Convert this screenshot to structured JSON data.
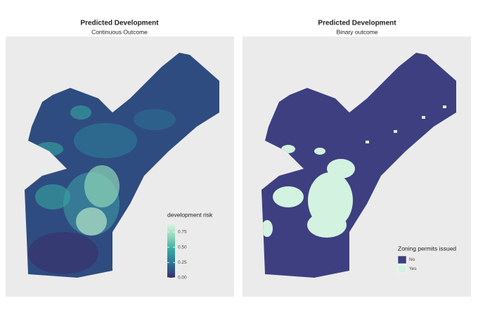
{
  "panels": [
    {
      "title": "Predicted Development",
      "subtitle": "Continuous Outcome",
      "legend": {
        "title": "development risk",
        "lim": [
          0,
          0.9
        ],
        "ticks": [
          {
            "value": 0,
            "label": "0.00"
          },
          {
            "value": 0.25,
            "label": "0.25"
          },
          {
            "value": 0.5,
            "label": "0.50"
          },
          {
            "value": 0.75,
            "label": "0.75"
          }
        ],
        "colors": [
          "#3a2e6a",
          "#2d6f95",
          "#36a7a2",
          "#8fd7b8",
          "#e2f6e6"
        ]
      }
    },
    {
      "title": "Predicted Development",
      "subtitle": "Binary outcome",
      "legend": {
        "title": "Zoning permits issued",
        "items": [
          {
            "label": "No",
            "color": "#3d3f80"
          },
          {
            "label": "Yes",
            "color": "#d3f2df"
          }
        ]
      }
    }
  ]
}
